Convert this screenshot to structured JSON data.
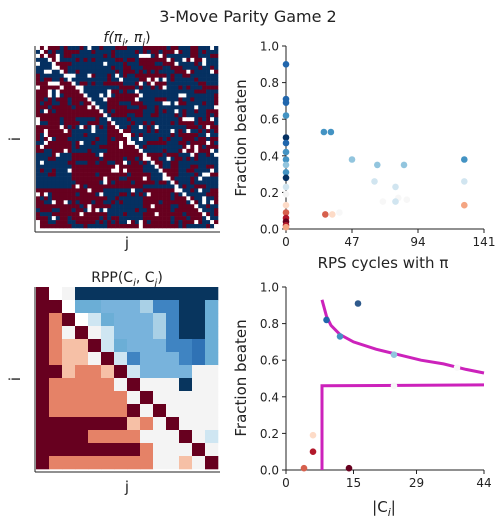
{
  "figure": {
    "title": "3-Move Parity Game 2"
  },
  "chart_data": [
    {
      "type": "heatmap",
      "title": "f(πi, πj)",
      "title_main": "f(π",
      "title_sub1": "i",
      "title_mid": ", π",
      "title_sub2": "j",
      "title_end": ")",
      "xlabel": "j",
      "ylabel": "i",
      "description_values": "dense binary matrix; red = i loses, blue = i beats j",
      "colors": {
        "low": "#67001f",
        "high": "#053061",
        "mid": "#ffffff"
      }
    },
    {
      "type": "scatter",
      "title": "",
      "xlabel": "RPS cycles with π",
      "ylabel": "Fraction beaten",
      "xticks": [
        "0",
        "47",
        "94",
        "141"
      ],
      "yticks": [
        "0.0",
        "0.2",
        "0.4",
        "0.6",
        "0.8",
        "1.0"
      ],
      "xlim": [
        0,
        141
      ],
      "ylim": [
        0,
        1
      ],
      "points": [
        {
          "x": 0,
          "y": 0.9,
          "c": "#2166ac"
        },
        {
          "x": 0,
          "y": 0.71,
          "c": "#2166ac"
        },
        {
          "x": 0,
          "y": 0.69,
          "c": "#2166ac"
        },
        {
          "x": 0,
          "y": 0.62,
          "c": "#4393c3"
        },
        {
          "x": 0,
          "y": 0.5,
          "c": "#053061"
        },
        {
          "x": 0,
          "y": 0.47,
          "c": "#2166ac"
        },
        {
          "x": 0,
          "y": 0.42,
          "c": "#4393c3"
        },
        {
          "x": 0,
          "y": 0.38,
          "c": "#4393c3"
        },
        {
          "x": 0,
          "y": 0.35,
          "c": "#92c5de"
        },
        {
          "x": 0,
          "y": 0.31,
          "c": "#4393c3"
        },
        {
          "x": 0,
          "y": 0.28,
          "c": "#053061"
        },
        {
          "x": 0,
          "y": 0.23,
          "c": "#d1e5f0"
        },
        {
          "x": 0,
          "y": 0.19,
          "c": "#f4f4f4"
        },
        {
          "x": 0,
          "y": 0.13,
          "c": "#fddbc7"
        },
        {
          "x": 0,
          "y": 0.09,
          "c": "#d6604d"
        },
        {
          "x": 0,
          "y": 0.06,
          "c": "#b2182b"
        },
        {
          "x": 0,
          "y": 0.04,
          "c": "#67001f"
        },
        {
          "x": 0,
          "y": 0.02,
          "c": "#b2182b"
        },
        {
          "x": 0,
          "y": 0.01,
          "c": "#f4a582"
        },
        {
          "x": 27,
          "y": 0.53,
          "c": "#4393c3"
        },
        {
          "x": 32,
          "y": 0.53,
          "c": "#4393c3"
        },
        {
          "x": 28,
          "y": 0.08,
          "c": "#d6604d"
        },
        {
          "x": 33,
          "y": 0.08,
          "c": "#fddbc7"
        },
        {
          "x": 38,
          "y": 0.09,
          "c": "#f7f7f7"
        },
        {
          "x": 47,
          "y": 0.38,
          "c": "#92c5de"
        },
        {
          "x": 65,
          "y": 0.35,
          "c": "#92c5de"
        },
        {
          "x": 63,
          "y": 0.26,
          "c": "#d1e5f0"
        },
        {
          "x": 78,
          "y": 0.23,
          "c": "#d1e5f0"
        },
        {
          "x": 80,
          "y": 0.17,
          "c": "#f7f7f7"
        },
        {
          "x": 78,
          "y": 0.15,
          "c": "#d1e5f0"
        },
        {
          "x": 69,
          "y": 0.15,
          "c": "#f7f7f7"
        },
        {
          "x": 84,
          "y": 0.35,
          "c": "#92c5de"
        },
        {
          "x": 86,
          "y": 0.16,
          "c": "#f7f7f7"
        },
        {
          "x": 127,
          "y": 0.38,
          "c": "#4393c3"
        },
        {
          "x": 127,
          "y": 0.26,
          "c": "#d1e5f0"
        },
        {
          "x": 127,
          "y": 0.13,
          "c": "#f4a582"
        }
      ]
    },
    {
      "type": "heatmap",
      "title": "RPP(Ci, Cj)",
      "title_main": "RPP(C",
      "title_sub1": "i",
      "title_mid": ", C",
      "title_sub2": "j",
      "title_end": ")",
      "xlabel": "j",
      "ylabel": "i",
      "rows": [
        "K WNNNNNNNNNNN",
        "RK PPOOOHLLNNP",
        "RSK IPOOOHLNNP",
        "RSWKWIOOOHLNNP",
        "RSTTKIPOOOLLMP",
        "RSTTWKILOOOLMP",
        "RRTSSTKIOOOOWW",
        "RSSSSSWKWWWNWW",
        "RSSSSSSWKWWWWW",
        "RSSSSSSRWKWWWW",
        "RRRRRRRTSWKWWW",
        "RRRRSSSSWWWKWI",
        "RRRRRRRRSWWWKW",
        "RSSSSSSSSWWTWK"
      ],
      "palette": {
        "K": "#67001f",
        "R": "#67001f",
        "S": "#e58267",
        "T": "#f6c0a6",
        "U": "#fbe3d6",
        "W": "#f4f4f4",
        "I": "#cfe6f2",
        "P": "#6baed6",
        "O": "#78b3dc",
        "L": "#3f84c2",
        "M": "#2f72b5",
        "H": "#a9d0e6",
        "N": "#08355e",
        " ": "#ffffff"
      }
    },
    {
      "type": "scatter",
      "title": "",
      "xlabel": "|Ci|",
      "xlabel_main": "|C",
      "xlabel_sub": "i",
      "xlabel_end": "|",
      "ylabel": "Fraction beaten",
      "xticks": [
        "0",
        "15",
        "29",
        "44"
      ],
      "yticks": [
        "0.0",
        "0.2",
        "0.4",
        "0.6",
        "0.8",
        "1.0"
      ],
      "xlim": [
        0,
        44
      ],
      "ylim": [
        0,
        1
      ],
      "curve_color": "#cc22bb",
      "curve_upper": [
        [
          8,
          0.93
        ],
        [
          9,
          0.84
        ],
        [
          10,
          0.79
        ],
        [
          12,
          0.74
        ],
        [
          15,
          0.7
        ],
        [
          20,
          0.66
        ],
        [
          25,
          0.63
        ],
        [
          30,
          0.6
        ],
        [
          35,
          0.58
        ],
        [
          40,
          0.55
        ],
        [
          44,
          0.53
        ]
      ],
      "curve_lower": [
        [
          8,
          0.0
        ],
        [
          8,
          0.46
        ],
        [
          44,
          0.465
        ]
      ],
      "points": [
        {
          "x": 16,
          "y": 0.91,
          "c": "#2f5a8c"
        },
        {
          "x": 9,
          "y": 0.82,
          "c": "#2166ac"
        },
        {
          "x": 12,
          "y": 0.73,
          "c": "#4393c3"
        },
        {
          "x": 24,
          "y": 0.63,
          "c": "#92c5de"
        },
        {
          "x": 38,
          "y": 0.56,
          "c": "#f7f7f7"
        },
        {
          "x": 24,
          "y": 0.46,
          "c": "#f7f7f7"
        },
        {
          "x": 6,
          "y": 0.19,
          "c": "#fddbc7"
        },
        {
          "x": 6,
          "y": 0.1,
          "c": "#b2182b"
        },
        {
          "x": 4,
          "y": 0.01,
          "c": "#d6604d"
        },
        {
          "x": 14,
          "y": 0.01,
          "c": "#67001f"
        }
      ]
    }
  ]
}
